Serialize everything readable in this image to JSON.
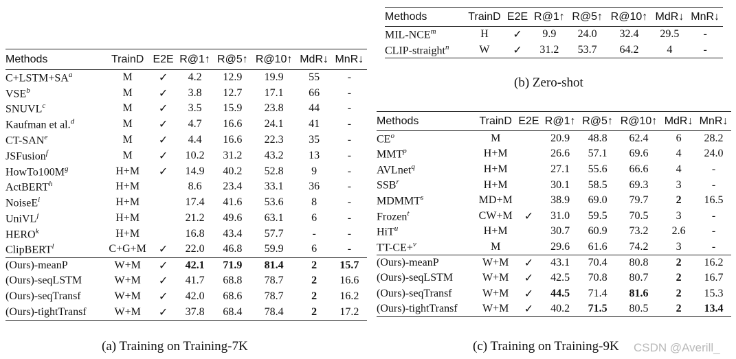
{
  "headers": [
    "Methods",
    "TrainD",
    "E2E",
    "R@1↑",
    "R@5↑",
    "R@10↑",
    "MdR↓",
    "MnR↓"
  ],
  "table_a": {
    "caption": "(a) Training on Training-7K",
    "rows": [
      {
        "method": "C+LSTM+SA",
        "sup": "a",
        "traind": "M",
        "e2e": "✓",
        "r1": "4.2",
        "r5": "12.9",
        "r10": "19.9",
        "mdr": "55",
        "mnr": "-"
      },
      {
        "method": "VSE",
        "sup": "b",
        "traind": "M",
        "e2e": "✓",
        "r1": "3.8",
        "r5": "12.7",
        "r10": "17.1",
        "mdr": "66",
        "mnr": "-"
      },
      {
        "method": "SNUVL",
        "sup": "c",
        "traind": "M",
        "e2e": "✓",
        "r1": "3.5",
        "r5": "15.9",
        "r10": "23.8",
        "mdr": "44",
        "mnr": "-"
      },
      {
        "method": "Kaufman et al.",
        "sup": "d",
        "traind": "M",
        "e2e": "✓",
        "r1": "4.7",
        "r5": "16.6",
        "r10": "24.1",
        "mdr": "41",
        "mnr": "-"
      },
      {
        "method": "CT-SAN",
        "sup": "e",
        "traind": "M",
        "e2e": "✓",
        "r1": "4.4",
        "r5": "16.6",
        "r10": "22.3",
        "mdr": "35",
        "mnr": "-"
      },
      {
        "method": "JSFusion",
        "sup": "f",
        "traind": "M",
        "e2e": "✓",
        "r1": "10.2",
        "r5": "31.2",
        "r10": "43.2",
        "mdr": "13",
        "mnr": "-"
      },
      {
        "method": "HowTo100M",
        "sup": "g",
        "traind": "H+M",
        "e2e": "✓",
        "r1": "14.9",
        "r5": "40.2",
        "r10": "52.8",
        "mdr": "9",
        "mnr": "-"
      },
      {
        "method": "ActBERT",
        "sup": "h",
        "traind": "H+M",
        "e2e": "",
        "r1": "8.6",
        "r5": "23.4",
        "r10": "33.1",
        "mdr": "36",
        "mnr": "-"
      },
      {
        "method": "NoiseE",
        "sup": "i",
        "traind": "H+M",
        "e2e": "",
        "r1": "17.4",
        "r5": "41.6",
        "r10": "53.6",
        "mdr": "8",
        "mnr": "-"
      },
      {
        "method": "UniVL",
        "sup": "j",
        "traind": "H+M",
        "e2e": "",
        "r1": "21.2",
        "r5": "49.6",
        "r10": "63.1",
        "mdr": "6",
        "mnr": "-"
      },
      {
        "method": "HERO",
        "sup": "k",
        "traind": "H+M",
        "e2e": "",
        "r1": "16.8",
        "r5": "43.4",
        "r10": "57.7",
        "mdr": "-",
        "mnr": "-"
      },
      {
        "method": "ClipBERT",
        "sup": "l",
        "traind": "C+G+M",
        "e2e": "✓",
        "r1": "22.0",
        "r5": "46.8",
        "r10": "59.9",
        "mdr": "6",
        "mnr": "-"
      }
    ],
    "ours": [
      {
        "method": "(Ours)-meanP",
        "traind": "W+M",
        "e2e": "✓",
        "r1": "42.1",
        "r5": "71.9",
        "r10": "81.4",
        "mdr": "2",
        "mnr": "15.7",
        "bold": [
          "r1",
          "r5",
          "r10",
          "mdr",
          "mnr"
        ]
      },
      {
        "method": "(Ours)-seqLSTM",
        "traind": "W+M",
        "e2e": "✓",
        "r1": "41.7",
        "r5": "68.8",
        "r10": "78.7",
        "mdr": "2",
        "mnr": "16.6",
        "bold": [
          "mdr"
        ]
      },
      {
        "method": "(Ours)-seqTransf",
        "traind": "W+M",
        "e2e": "✓",
        "r1": "42.0",
        "r5": "68.6",
        "r10": "78.7",
        "mdr": "2",
        "mnr": "16.2",
        "bold": [
          "mdr"
        ]
      },
      {
        "method": "(Ours)-tightTransf",
        "traind": "W+M",
        "e2e": "✓",
        "r1": "37.8",
        "r5": "68.4",
        "r10": "78.4",
        "mdr": "2",
        "mnr": "17.2",
        "bold": [
          "mdr"
        ]
      }
    ]
  },
  "table_b": {
    "caption": "(b) Zero-shot",
    "rows": [
      {
        "method": "MIL-NCE",
        "sup": "m",
        "traind": "H",
        "e2e": "✓",
        "r1": "9.9",
        "r5": "24.0",
        "r10": "32.4",
        "mdr": "29.5",
        "mnr": "-"
      },
      {
        "method": "CLIP-straight",
        "sup": "n",
        "traind": "W",
        "e2e": "✓",
        "r1": "31.2",
        "r5": "53.7",
        "r10": "64.2",
        "mdr": "4",
        "mnr": "-"
      }
    ]
  },
  "table_c": {
    "caption": "(c) Training on Training-9K",
    "rows": [
      {
        "method": "CE",
        "sup": "o",
        "traind": "M",
        "e2e": "",
        "r1": "20.9",
        "r5": "48.8",
        "r10": "62.4",
        "mdr": "6",
        "mnr": "28.2"
      },
      {
        "method": "MMT",
        "sup": "p",
        "traind": "H+M",
        "e2e": "",
        "r1": "26.6",
        "r5": "57.1",
        "r10": "69.6",
        "mdr": "4",
        "mnr": "24.0"
      },
      {
        "method": "AVLnet",
        "sup": "q",
        "traind": "H+M",
        "e2e": "",
        "r1": "27.1",
        "r5": "55.6",
        "r10": "66.6",
        "mdr": "4",
        "mnr": "-"
      },
      {
        "method": "SSB",
        "sup": "r",
        "traind": "H+M",
        "e2e": "",
        "r1": "30.1",
        "r5": "58.5",
        "r10": "69.3",
        "mdr": "3",
        "mnr": "-"
      },
      {
        "method": "MDMMT",
        "sup": "s",
        "traind": "MD+M",
        "e2e": "",
        "r1": "38.9",
        "r5": "69.0",
        "r10": "79.7",
        "mdr": "2",
        "mnr": "16.5",
        "bold": [
          "mdr"
        ]
      },
      {
        "method": "Frozen",
        "sup": "t",
        "traind": "CW+M",
        "e2e": "✓",
        "r1": "31.0",
        "r5": "59.5",
        "r10": "70.5",
        "mdr": "3",
        "mnr": "-"
      },
      {
        "method": "HiT",
        "sup": "u",
        "traind": "H+M",
        "e2e": "",
        "r1": "30.7",
        "r5": "60.9",
        "r10": "73.2",
        "mdr": "2.6",
        "mnr": "-"
      },
      {
        "method": "TT-CE+",
        "sup": "v",
        "traind": "M",
        "e2e": "",
        "r1": "29.6",
        "r5": "61.6",
        "r10": "74.2",
        "mdr": "3",
        "mnr": "-"
      }
    ],
    "ours": [
      {
        "method": "(Ours)-meanP",
        "traind": "W+M",
        "e2e": "✓",
        "r1": "43.1",
        "r5": "70.4",
        "r10": "80.8",
        "mdr": "2",
        "mnr": "16.2",
        "bold": [
          "mdr"
        ]
      },
      {
        "method": "(Ours)-seqLSTM",
        "traind": "W+M",
        "e2e": "✓",
        "r1": "42.5",
        "r5": "70.8",
        "r10": "80.7",
        "mdr": "2",
        "mnr": "16.7",
        "bold": [
          "mdr"
        ]
      },
      {
        "method": "(Ours)-seqTransf",
        "traind": "W+M",
        "e2e": "✓",
        "r1": "44.5",
        "r5": "71.4",
        "r10": "81.6",
        "mdr": "2",
        "mnr": "15.3",
        "bold": [
          "r1",
          "r10",
          "mdr"
        ]
      },
      {
        "method": "(Ours)-tightTransf",
        "traind": "W+M",
        "e2e": "✓",
        "r1": "40.2",
        "r5": "71.5",
        "r10": "80.5",
        "mdr": "2",
        "mnr": "13.4",
        "bold": [
          "r5",
          "mdr",
          "mnr"
        ]
      }
    ]
  },
  "watermark": "CSDN @Averill_"
}
